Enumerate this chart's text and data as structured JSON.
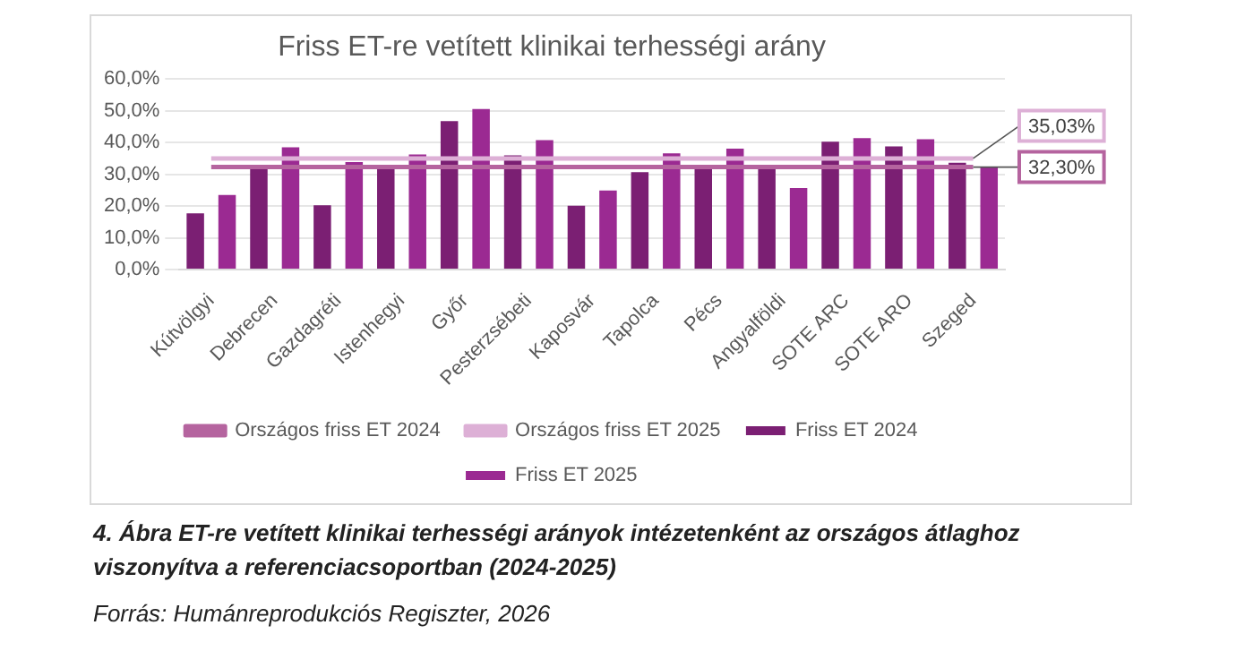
{
  "chart_data": {
    "type": "bar",
    "title": "Friss ET-re vetített klinikai terhességi arány",
    "categories": [
      "Kútvölgyi",
      "Debrecen",
      "Gazdagréti",
      "Istenhegyi",
      "Győr",
      "Pesterzsébeti",
      "Kaposvár",
      "Tapolca",
      "Pécs",
      "Angyalföldi",
      "SOTE ARC",
      "SOTE ARO",
      "Szeged"
    ],
    "series": [
      {
        "name": "Friss ET 2024",
        "color": "#7b1f73",
        "values": [
          17.7,
          32.7,
          20.3,
          31.7,
          46.8,
          36.0,
          20.1,
          30.7,
          33.0,
          32.3,
          40.3,
          38.8,
          33.7
        ]
      },
      {
        "name": "Friss ET 2025",
        "color": "#9b2a92",
        "values": [
          23.5,
          38.5,
          33.9,
          36.3,
          50.6,
          40.8,
          24.9,
          36.6,
          38.1,
          25.7,
          41.4,
          41.1,
          32.4
        ]
      },
      {
        "name": "Országos friss ET 2024",
        "type": "line",
        "color": "#b5649f",
        "values": [
          32.3,
          32.3,
          32.3,
          32.3,
          32.3,
          32.3,
          32.3,
          32.3,
          32.3,
          32.3,
          32.3,
          32.3,
          32.3
        ],
        "value_labels": [
          null,
          null,
          null,
          null,
          null,
          null,
          null,
          null,
          null,
          null,
          null,
          null,
          "32,30%"
        ]
      },
      {
        "name": "Országos friss ET 2025",
        "type": "line",
        "color": "#ddb0d6",
        "values": [
          35.03,
          35.03,
          35.03,
          35.03,
          35.03,
          35.03,
          35.03,
          35.03,
          35.03,
          35.03,
          35.03,
          35.03,
          35.03
        ],
        "value_labels": [
          null,
          null,
          null,
          null,
          null,
          null,
          null,
          null,
          null,
          null,
          null,
          null,
          "35,03%"
        ]
      }
    ],
    "ylim": [
      0,
      60
    ],
    "yticks": [
      {
        "value": 0,
        "label": "0,0%"
      },
      {
        "value": 10,
        "label": "10,0%"
      },
      {
        "value": 20,
        "label": "20,0%"
      },
      {
        "value": 30,
        "label": "30,0%"
      },
      {
        "value": 40,
        "label": "40,0%"
      },
      {
        "value": 50,
        "label": "50,0%"
      },
      {
        "value": 60,
        "label": "60,0%"
      }
    ],
    "grid": "y",
    "legend": "bottom",
    "marker": "none",
    "annotations": [
      "4. Ábra ET-re vetített klinikai terhességi arányok intézetenként az országos átlaghoz viszonyítva a referenciacsoportban (2024-2025)",
      "Forrás: Humánreprodukciós Regiszter, 2026"
    ]
  }
}
